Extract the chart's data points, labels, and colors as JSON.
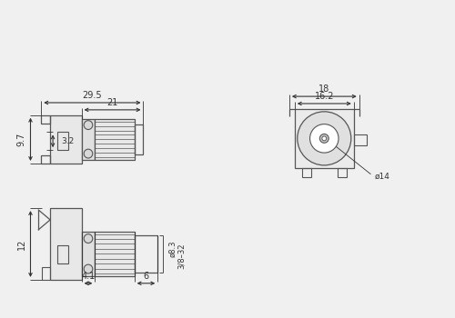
{
  "bg_color": "#f0f0f0",
  "line_color": "#555555",
  "dim_color": "#333333",
  "text_color": "#333333",
  "dims": {
    "top_left_width1": "29.5",
    "top_left_width2": "21",
    "top_left_height1": "9.7",
    "top_left_height2": "3.2",
    "top_right_width1": "18",
    "top_right_width2": "16.2",
    "top_right_dia": "ø14",
    "bot_left_width1": "4.1",
    "bot_left_width2": "6",
    "bot_left_height": "12",
    "bot_right_dia1": "ø8.3",
    "bot_right_thread": "3/8–32"
  }
}
